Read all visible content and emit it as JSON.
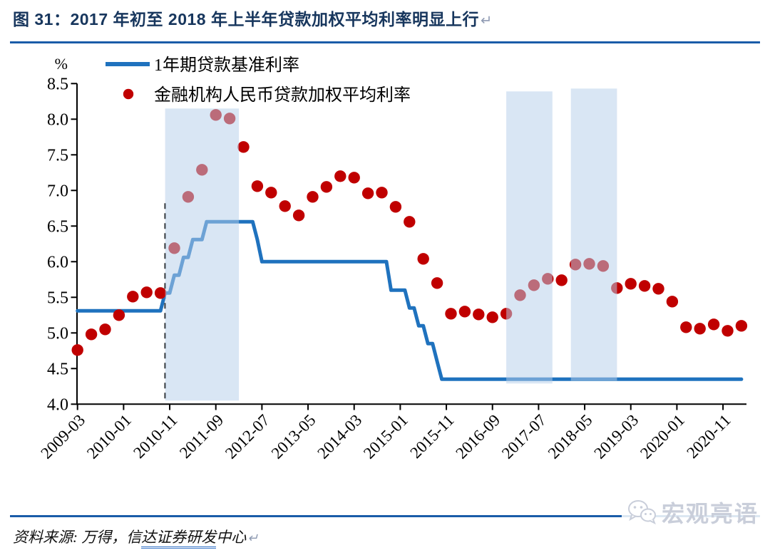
{
  "title": {
    "text": "图 31：2017 年初至 2018 年上半年贷款加权平均利率明显上行",
    "return_mark": "↵"
  },
  "source": {
    "prefix": "资料来源: 万得，信",
    "underlined": "达证券研发",
    "suffix": "中心",
    "return_mark": "↵"
  },
  "watermark": {
    "name": "宏观亮语"
  },
  "colors": {
    "title_navy": "#17365D",
    "divider_blue": "#1A5CA8",
    "benchmark_line": "#1F72BE",
    "dot_red": "#C00000",
    "region_fill": "rgba(183,207,234,0.52)",
    "axis_black": "#000000"
  },
  "chart_data": {
    "type": "line+scatter",
    "percent_label": "%",
    "ylim": [
      4.0,
      8.5
    ],
    "y_ticks": [
      "4.0",
      "4.5",
      "5.0",
      "5.5",
      "6.0",
      "6.5",
      "7.0",
      "7.5",
      "8.0",
      "8.5"
    ],
    "x_tick_labels": [
      "2009-03",
      "2010-01",
      "2010-11",
      "2011-09",
      "2012-07",
      "2013-05",
      "2014-03",
      "2015-01",
      "2015-11",
      "2016-09",
      "2017-07",
      "2018-05",
      "2019-03",
      "2020-01",
      "2020-11"
    ],
    "series": [
      {
        "name": "1年期贷款基准利率",
        "type": "line",
        "color": "#1F72BE",
        "start": "2009-03",
        "end": "2021-03",
        "changes": [
          [
            "2009-03",
            5.31
          ],
          [
            "2010-10",
            5.56
          ],
          [
            "2010-12",
            5.81
          ],
          [
            "2011-02",
            6.06
          ],
          [
            "2011-04",
            6.31
          ],
          [
            "2011-07",
            6.56
          ],
          [
            "2012-06",
            6.31
          ],
          [
            "2012-07",
            6.0
          ],
          [
            "2014-11",
            5.6
          ],
          [
            "2015-03",
            5.35
          ],
          [
            "2015-05",
            5.1
          ],
          [
            "2015-07",
            4.85
          ],
          [
            "2015-09",
            4.6
          ],
          [
            "2015-10",
            4.35
          ]
        ]
      },
      {
        "name": "金融机构人民币贷款加权平均利率",
        "type": "scatter",
        "color": "#C00000",
        "dates": [
          "2009-03",
          "2009-06",
          "2009-09",
          "2009-12",
          "2010-03",
          "2010-06",
          "2010-09",
          "2010-12",
          "2011-03",
          "2011-06",
          "2011-09",
          "2011-12",
          "2012-03",
          "2012-06",
          "2012-09",
          "2012-12",
          "2013-03",
          "2013-06",
          "2013-09",
          "2013-12",
          "2014-03",
          "2014-06",
          "2014-09",
          "2014-12",
          "2015-03",
          "2015-06",
          "2015-09",
          "2015-12",
          "2016-03",
          "2016-06",
          "2016-09",
          "2016-12",
          "2017-03",
          "2017-06",
          "2017-09",
          "2017-12",
          "2018-03",
          "2018-06",
          "2018-09",
          "2018-12",
          "2019-03",
          "2019-06",
          "2019-09",
          "2019-12",
          "2020-03",
          "2020-06",
          "2020-09",
          "2020-12",
          "2021-03"
        ],
        "values": [
          4.76,
          4.98,
          5.05,
          5.25,
          5.51,
          5.57,
          5.56,
          6.19,
          6.91,
          7.29,
          8.06,
          8.01,
          7.61,
          7.06,
          6.97,
          6.78,
          6.65,
          6.91,
          7.05,
          7.2,
          7.18,
          6.96,
          6.97,
          6.77,
          6.56,
          6.04,
          5.7,
          5.27,
          5.3,
          5.26,
          5.22,
          5.27,
          5.53,
          5.67,
          5.76,
          5.74,
          5.96,
          5.97,
          5.94,
          5.63,
          5.69,
          5.66,
          5.62,
          5.44,
          5.08,
          5.06,
          5.12,
          5.03,
          5.1
        ]
      }
    ],
    "shaded_regions": [
      {
        "from": "2010-10",
        "to": "2012-02",
        "bottom": 4.05,
        "top": 8.15
      },
      {
        "from": "2016-12",
        "to": "2017-10",
        "bottom": 4.29,
        "top": 8.39
      },
      {
        "from": "2018-02",
        "to": "2018-12",
        "bottom": 4.33,
        "top": 8.43
      }
    ],
    "dashed_line": {
      "at": "2010-10",
      "bottom": 4.05,
      "top": 6.82
    },
    "legend_position": "top-left-inside",
    "grid": false
  }
}
